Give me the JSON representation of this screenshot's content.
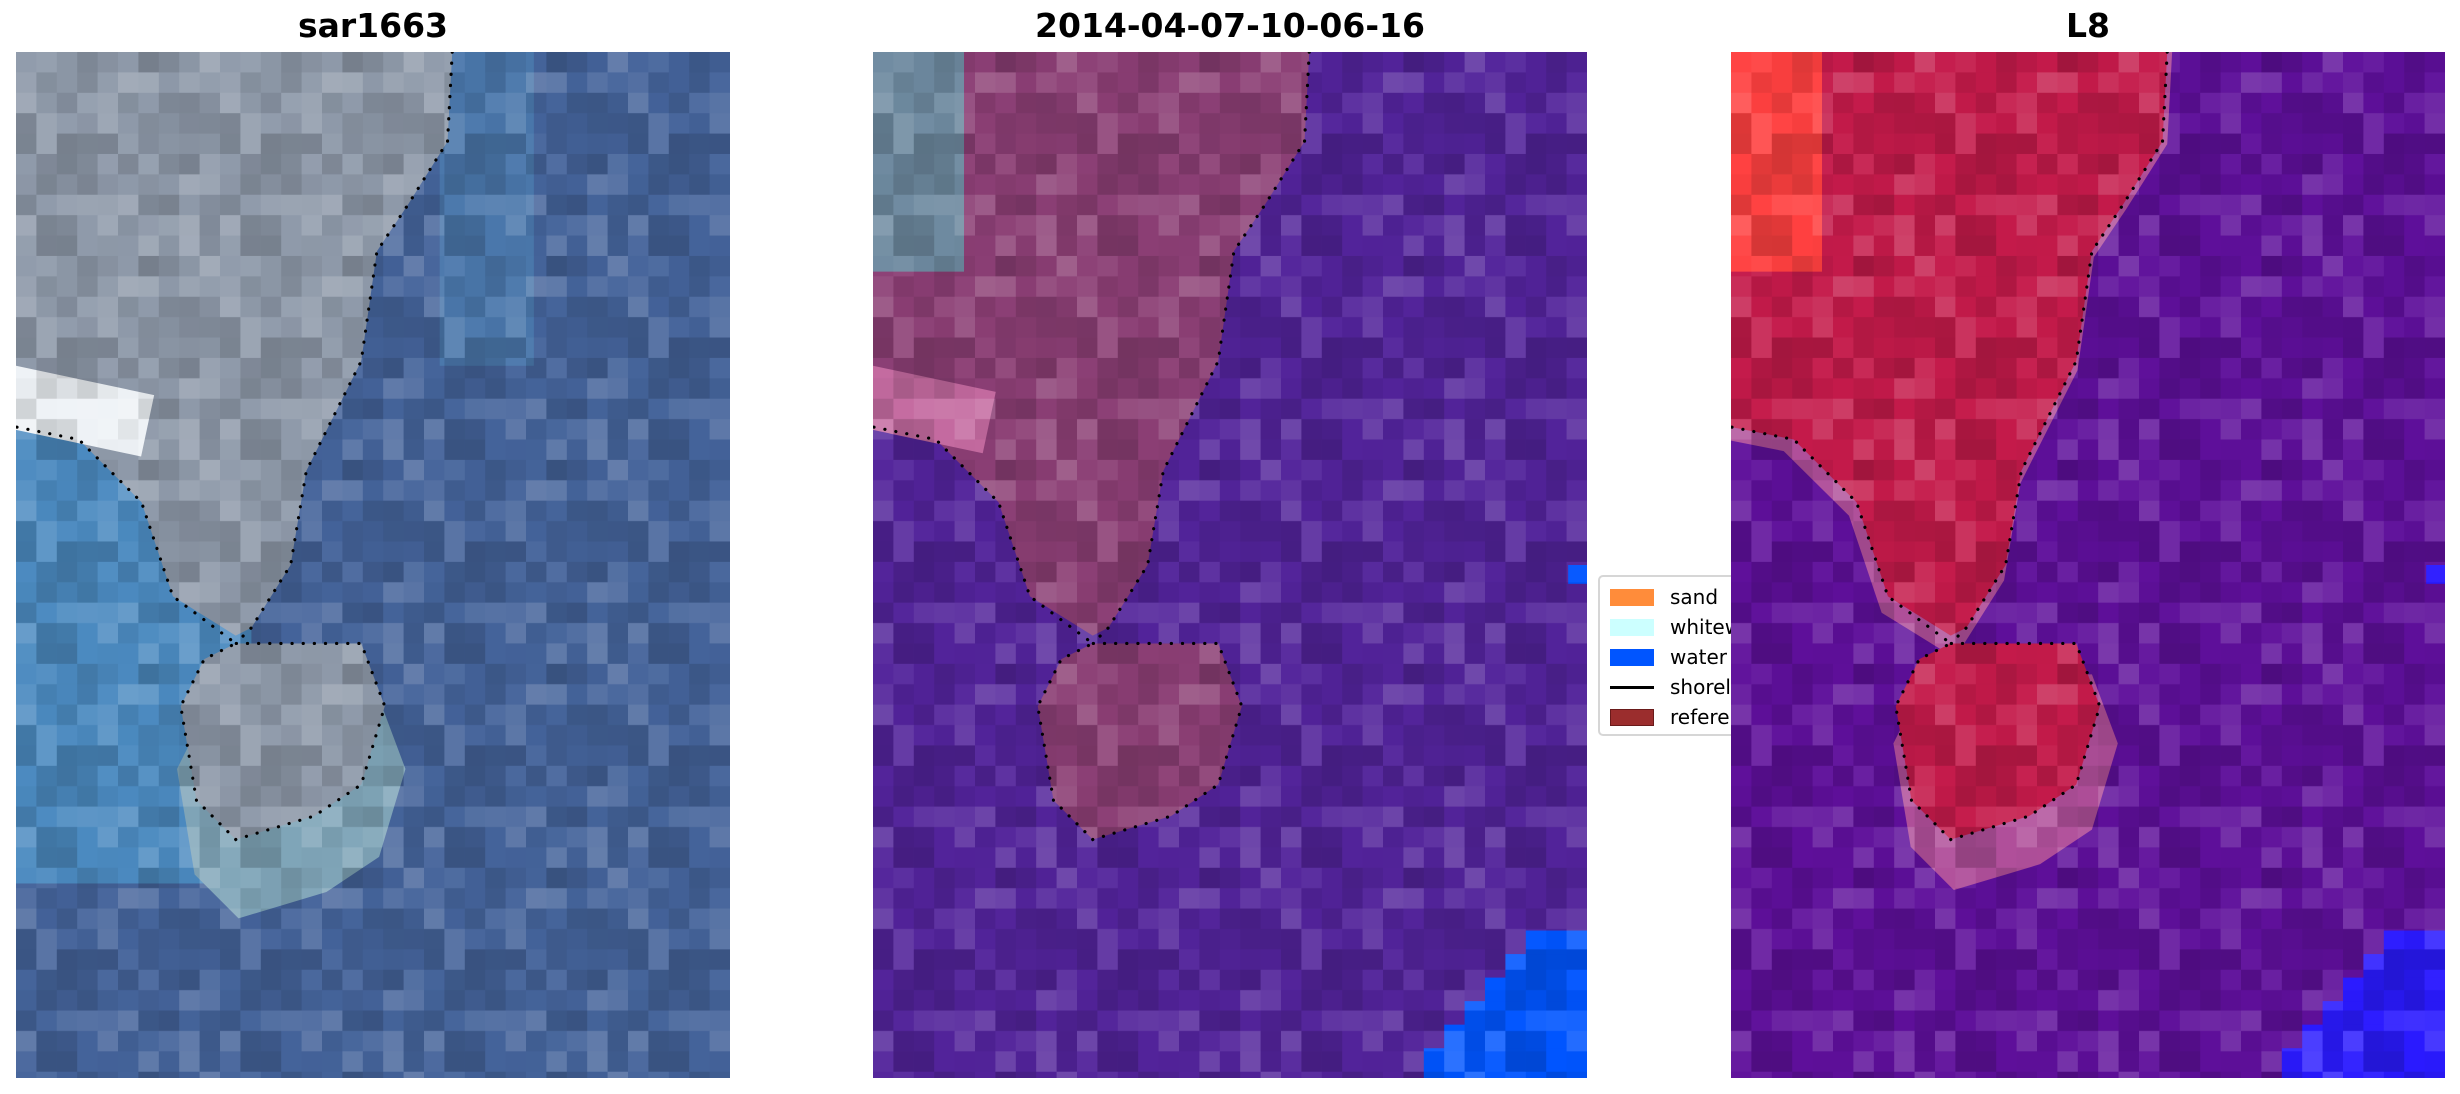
{
  "chart_data": [
    {
      "type": "image",
      "title": "sar1663",
      "axes": "off",
      "shoreline": "dotted black"
    },
    {
      "type": "image",
      "title": "2014-04-07-10-06-16",
      "axes": "off",
      "shoreline": "dotted black",
      "legend": {
        "placement": "right",
        "entries": [
          {
            "label": "sand",
            "color": "#ff8c3a",
            "kind": "patch"
          },
          {
            "label": "whitewater",
            "color": "#ccffff",
            "kind": "patch"
          },
          {
            "label": "water",
            "color": "#0055ff",
            "kind": "patch"
          },
          {
            "label": "shoreline",
            "color": "#000000",
            "kind": "line"
          },
          {
            "label": "reference",
            "color": "#9b2d2d",
            "kind": "patch"
          }
        ]
      }
    },
    {
      "type": "image",
      "title": "L8",
      "axes": "off",
      "shoreline": "dotted black"
    }
  ],
  "colors": {
    "p1_water": "#44639a",
    "p1_land": "#8f9aaa",
    "p2_water": "#52239a",
    "p2_land": "#8b3e74",
    "p3_water": "#5e0f9a",
    "p3_land": "#c41a4a",
    "water_class": "#0055ff"
  }
}
